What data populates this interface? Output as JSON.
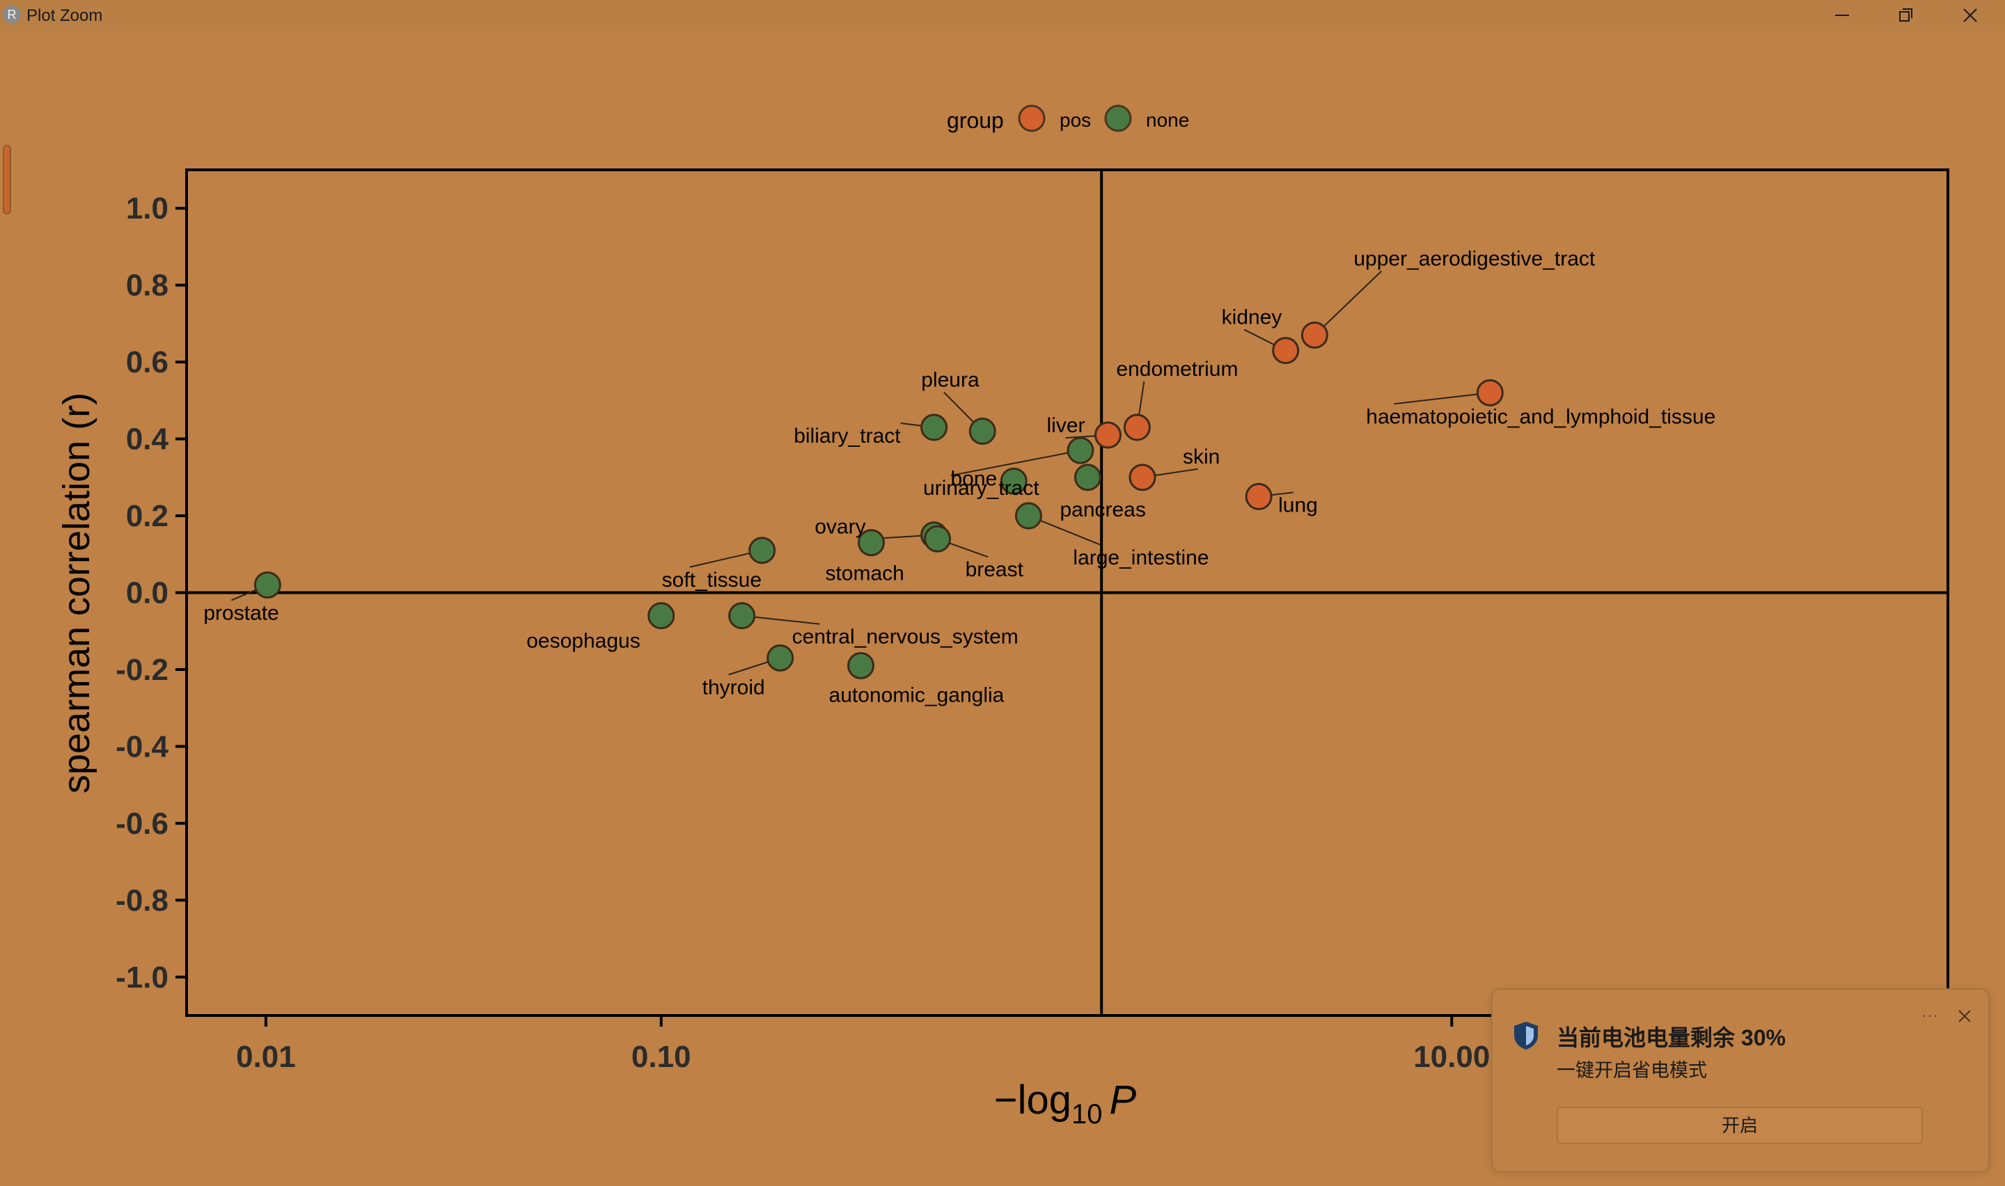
{
  "window": {
    "title": "Plot Zoom",
    "app_icon": "R"
  },
  "chart_data": {
    "type": "scatter",
    "xlabel": "−log₁₀ P",
    "xlabel_prefix": "−log",
    "xlabel_sub": "10",
    "xlabel_var": "P",
    "ylabel": "spearman correlation (r)",
    "x_scale": "log10",
    "xlim": [
      0.0063,
      180
    ],
    "ylim": [
      -1.1,
      1.1
    ],
    "x_ticks": [
      0.01,
      0.1,
      10
    ],
    "x_tick_labels": [
      "0.01",
      "0.10",
      "10.00"
    ],
    "y_ticks": [
      1.0,
      0.8,
      0.6,
      0.4,
      0.2,
      0.0,
      -0.2,
      -0.4,
      -0.6,
      -0.8,
      -1.0
    ],
    "y_tick_labels": [
      "1.0",
      "0.8",
      "0.6",
      "0.4",
      "0.2",
      "0.0",
      "-0.2",
      "-0.4",
      "-0.6",
      "-0.8",
      "-1.0"
    ],
    "reference_lines": {
      "x": 1.3,
      "y": 0.0
    },
    "legend": {
      "title": "group",
      "position": "top",
      "items": [
        {
          "label": "pos",
          "color": "#d2612e"
        },
        {
          "label": "none",
          "color": "#4a7a43"
        }
      ]
    },
    "points": [
      {
        "label": "upper_aerodigestive_tract",
        "x": 4.5,
        "y": 0.67,
        "group": "pos"
      },
      {
        "label": "kidney",
        "x": 3.8,
        "y": 0.63,
        "group": "pos"
      },
      {
        "label": "endometrium",
        "x": 1.6,
        "y": 0.43,
        "group": "pos"
      },
      {
        "label": "haematopoietic_and_lymphoid_tissue",
        "x": 12.5,
        "y": 0.52,
        "group": "pos"
      },
      {
        "label": "liver",
        "x": 1.35,
        "y": 0.41,
        "group": "pos"
      },
      {
        "label": "skin",
        "x": 1.65,
        "y": 0.3,
        "group": "pos"
      },
      {
        "label": "lung",
        "x": 3.25,
        "y": 0.25,
        "group": "pos"
      },
      {
        "label": "pleura",
        "x": 0.65,
        "y": 0.42,
        "group": "none"
      },
      {
        "label": "biliary_tract",
        "x": 0.49,
        "y": 0.43,
        "group": "none"
      },
      {
        "label": "bone",
        "x": 0.78,
        "y": 0.29,
        "group": "none"
      },
      {
        "label": "urinary_tract",
        "x": 1.15,
        "y": 0.37,
        "group": "none"
      },
      {
        "label": "pancreas",
        "x": 1.2,
        "y": 0.3,
        "group": "none"
      },
      {
        "label": "ovary",
        "x": 0.49,
        "y": 0.15,
        "group": "none"
      },
      {
        "label": "breast",
        "x": 0.5,
        "y": 0.14,
        "group": "none"
      },
      {
        "label": "stomach",
        "x": 0.34,
        "y": 0.13,
        "group": "none"
      },
      {
        "label": "large_intestine",
        "x": 0.85,
        "y": 0.2,
        "group": "none"
      },
      {
        "label": "soft_tissue",
        "x": 0.18,
        "y": 0.11,
        "group": "none"
      },
      {
        "label": "prostate",
        "x": 0.0101,
        "y": 0.02,
        "group": "none"
      },
      {
        "label": "oesophagus",
        "x": 0.1,
        "y": -0.06,
        "group": "none"
      },
      {
        "label": "central_nervous_system",
        "x": 0.16,
        "y": -0.06,
        "group": "none"
      },
      {
        "label": "thyroid",
        "x": 0.2,
        "y": -0.17,
        "group": "none"
      },
      {
        "label": "autonomic_ganglia",
        "x": 0.32,
        "y": -0.19,
        "group": "none"
      }
    ]
  },
  "toast": {
    "title": "当前电池电量剩余 30%",
    "message": "一键开启省电模式",
    "action_label": "开启",
    "more_label": "···",
    "icon": "shield-icon"
  }
}
